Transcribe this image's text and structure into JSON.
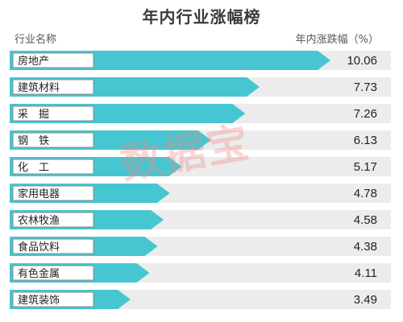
{
  "chart_data": {
    "type": "bar",
    "orientation": "horizontal",
    "title": "年内行业涨幅榜",
    "category_header": "行业名称",
    "value_header": "年内涨跌幅（%）",
    "categories": [
      "房地产",
      "建筑材料",
      "采　掘",
      "钢　铁",
      "化　工",
      "家用电器",
      "农林牧渔",
      "食品饮料",
      "有色金属",
      "建筑装饰"
    ],
    "values": [
      10.06,
      7.73,
      7.26,
      6.13,
      5.17,
      4.78,
      4.58,
      4.38,
      4.11,
      3.49
    ],
    "value_labels": [
      "10.06",
      "7.73",
      "7.26",
      "6.13",
      "5.17",
      "4.78",
      "4.58",
      "4.38",
      "4.11",
      "3.49"
    ],
    "xlim": [
      0,
      10.06
    ],
    "grid": false,
    "legend": "none",
    "colors": {
      "bar": "#46c6d0",
      "track": "#ececec"
    }
  },
  "watermark": "数据宝"
}
